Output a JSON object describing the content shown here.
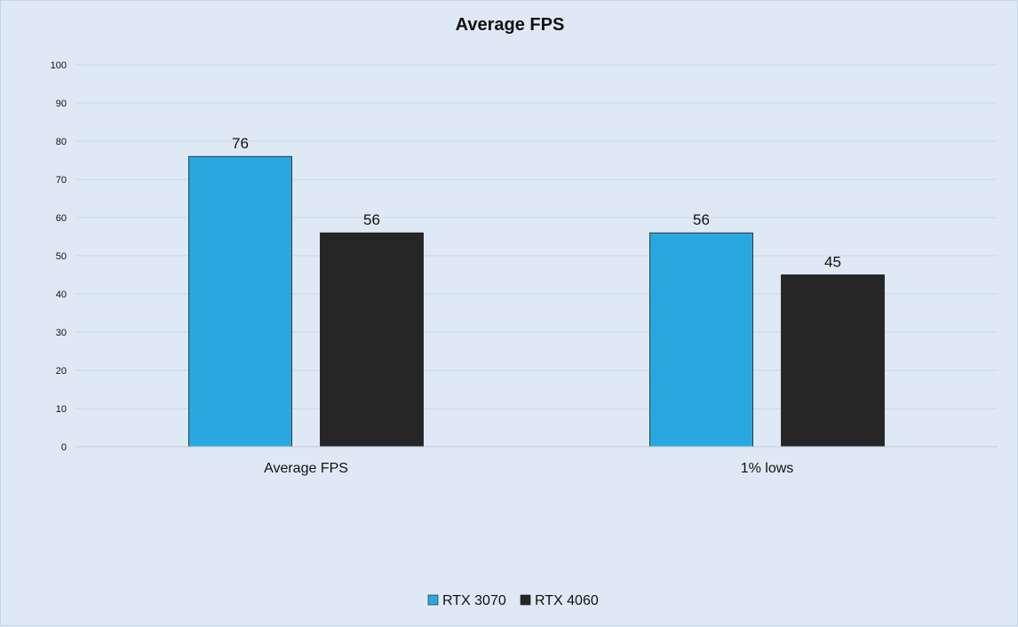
{
  "chart_data": {
    "type": "bar",
    "title": "Average FPS",
    "xlabel": "",
    "ylabel": "",
    "categories": [
      "Average FPS",
      "1% lows"
    ],
    "series": [
      {
        "name": "RTX 3070",
        "values": [
          76,
          56
        ],
        "color": "#29a8e0"
      },
      {
        "name": "RTX 4060",
        "values": [
          56,
          45
        ],
        "color": "#262626"
      }
    ],
    "ylim": [
      0,
      100
    ],
    "yticks": [
      "0",
      "10",
      "20",
      "30",
      "40",
      "50",
      "60",
      "70",
      "80",
      "90",
      "100"
    ],
    "grid": true,
    "legend": "bottom-center"
  }
}
